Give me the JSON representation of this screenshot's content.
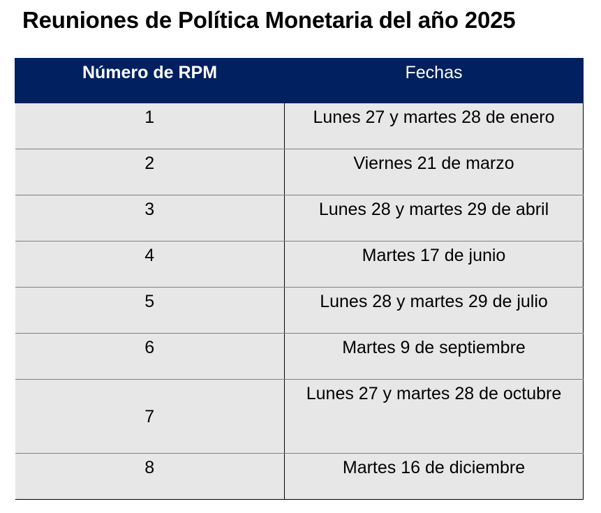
{
  "title": "Reuniones de Política Monetaria del año 2025",
  "table": {
    "headers": {
      "number": "Número de RPM",
      "dates": "Fechas"
    },
    "rows": [
      {
        "number": "1",
        "date": "Lunes 27 y martes 28 de enero"
      },
      {
        "number": "2",
        "date": "Viernes 21 de marzo"
      },
      {
        "number": "3",
        "date": "Lunes 28 y martes 29 de abril"
      },
      {
        "number": "4",
        "date": "Martes 17 de junio"
      },
      {
        "number": "5",
        "date": "Lunes 28 y martes 29 de julio"
      },
      {
        "number": "6",
        "date": "Martes 9 de septiembre"
      },
      {
        "number": "7",
        "date": "Lunes 27 y martes 28 de octubre"
      },
      {
        "number": "8",
        "date": "Martes 16 de diciembre"
      }
    ]
  },
  "colors": {
    "header_background": "#002060",
    "header_text": "#ffffff",
    "cell_background": "#e7e7e7"
  }
}
